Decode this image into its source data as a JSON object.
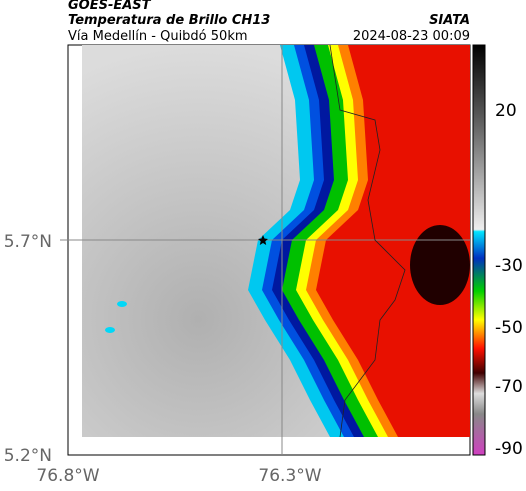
{
  "header": {
    "title": "GOES-EAST",
    "subtitle": "Temperatura de Brillo CH13",
    "region": "Vía Medellín - Quibdó 50km",
    "source": "SIATA",
    "timestamp": "2024-08-23 00:09"
  },
  "map": {
    "lat_labels": [
      "5.7°N",
      "5.2°N"
    ],
    "lon_labels": [
      "76.8°W",
      "76.3°W"
    ]
  },
  "colorbar": {
    "tick_labels": [
      "20",
      "-30",
      "-50",
      "-70",
      "-90"
    ]
  }
}
